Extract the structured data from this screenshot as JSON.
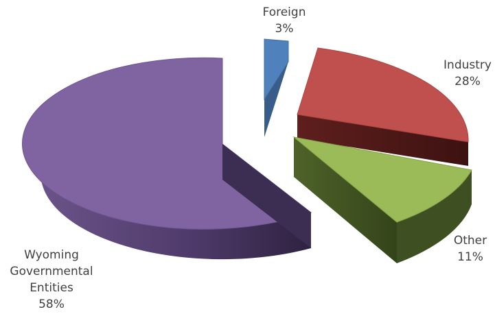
{
  "chart_data": {
    "type": "pie",
    "style": "3d-exploded",
    "slices": [
      {
        "label": "Foreign",
        "value": 3,
        "value_text": "3%",
        "color": "#4f81bd"
      },
      {
        "label": "Industry",
        "value": 28,
        "value_text": "28%",
        "color": "#c0504d"
      },
      {
        "label": "Other",
        "value": 11,
        "value_text": "11%",
        "color": "#9bbb59"
      },
      {
        "label_lines": [
          "Wyoming",
          "Governmental",
          "Entities"
        ],
        "value": 58,
        "value_text": "58%",
        "color": "#8064a2"
      }
    ]
  }
}
